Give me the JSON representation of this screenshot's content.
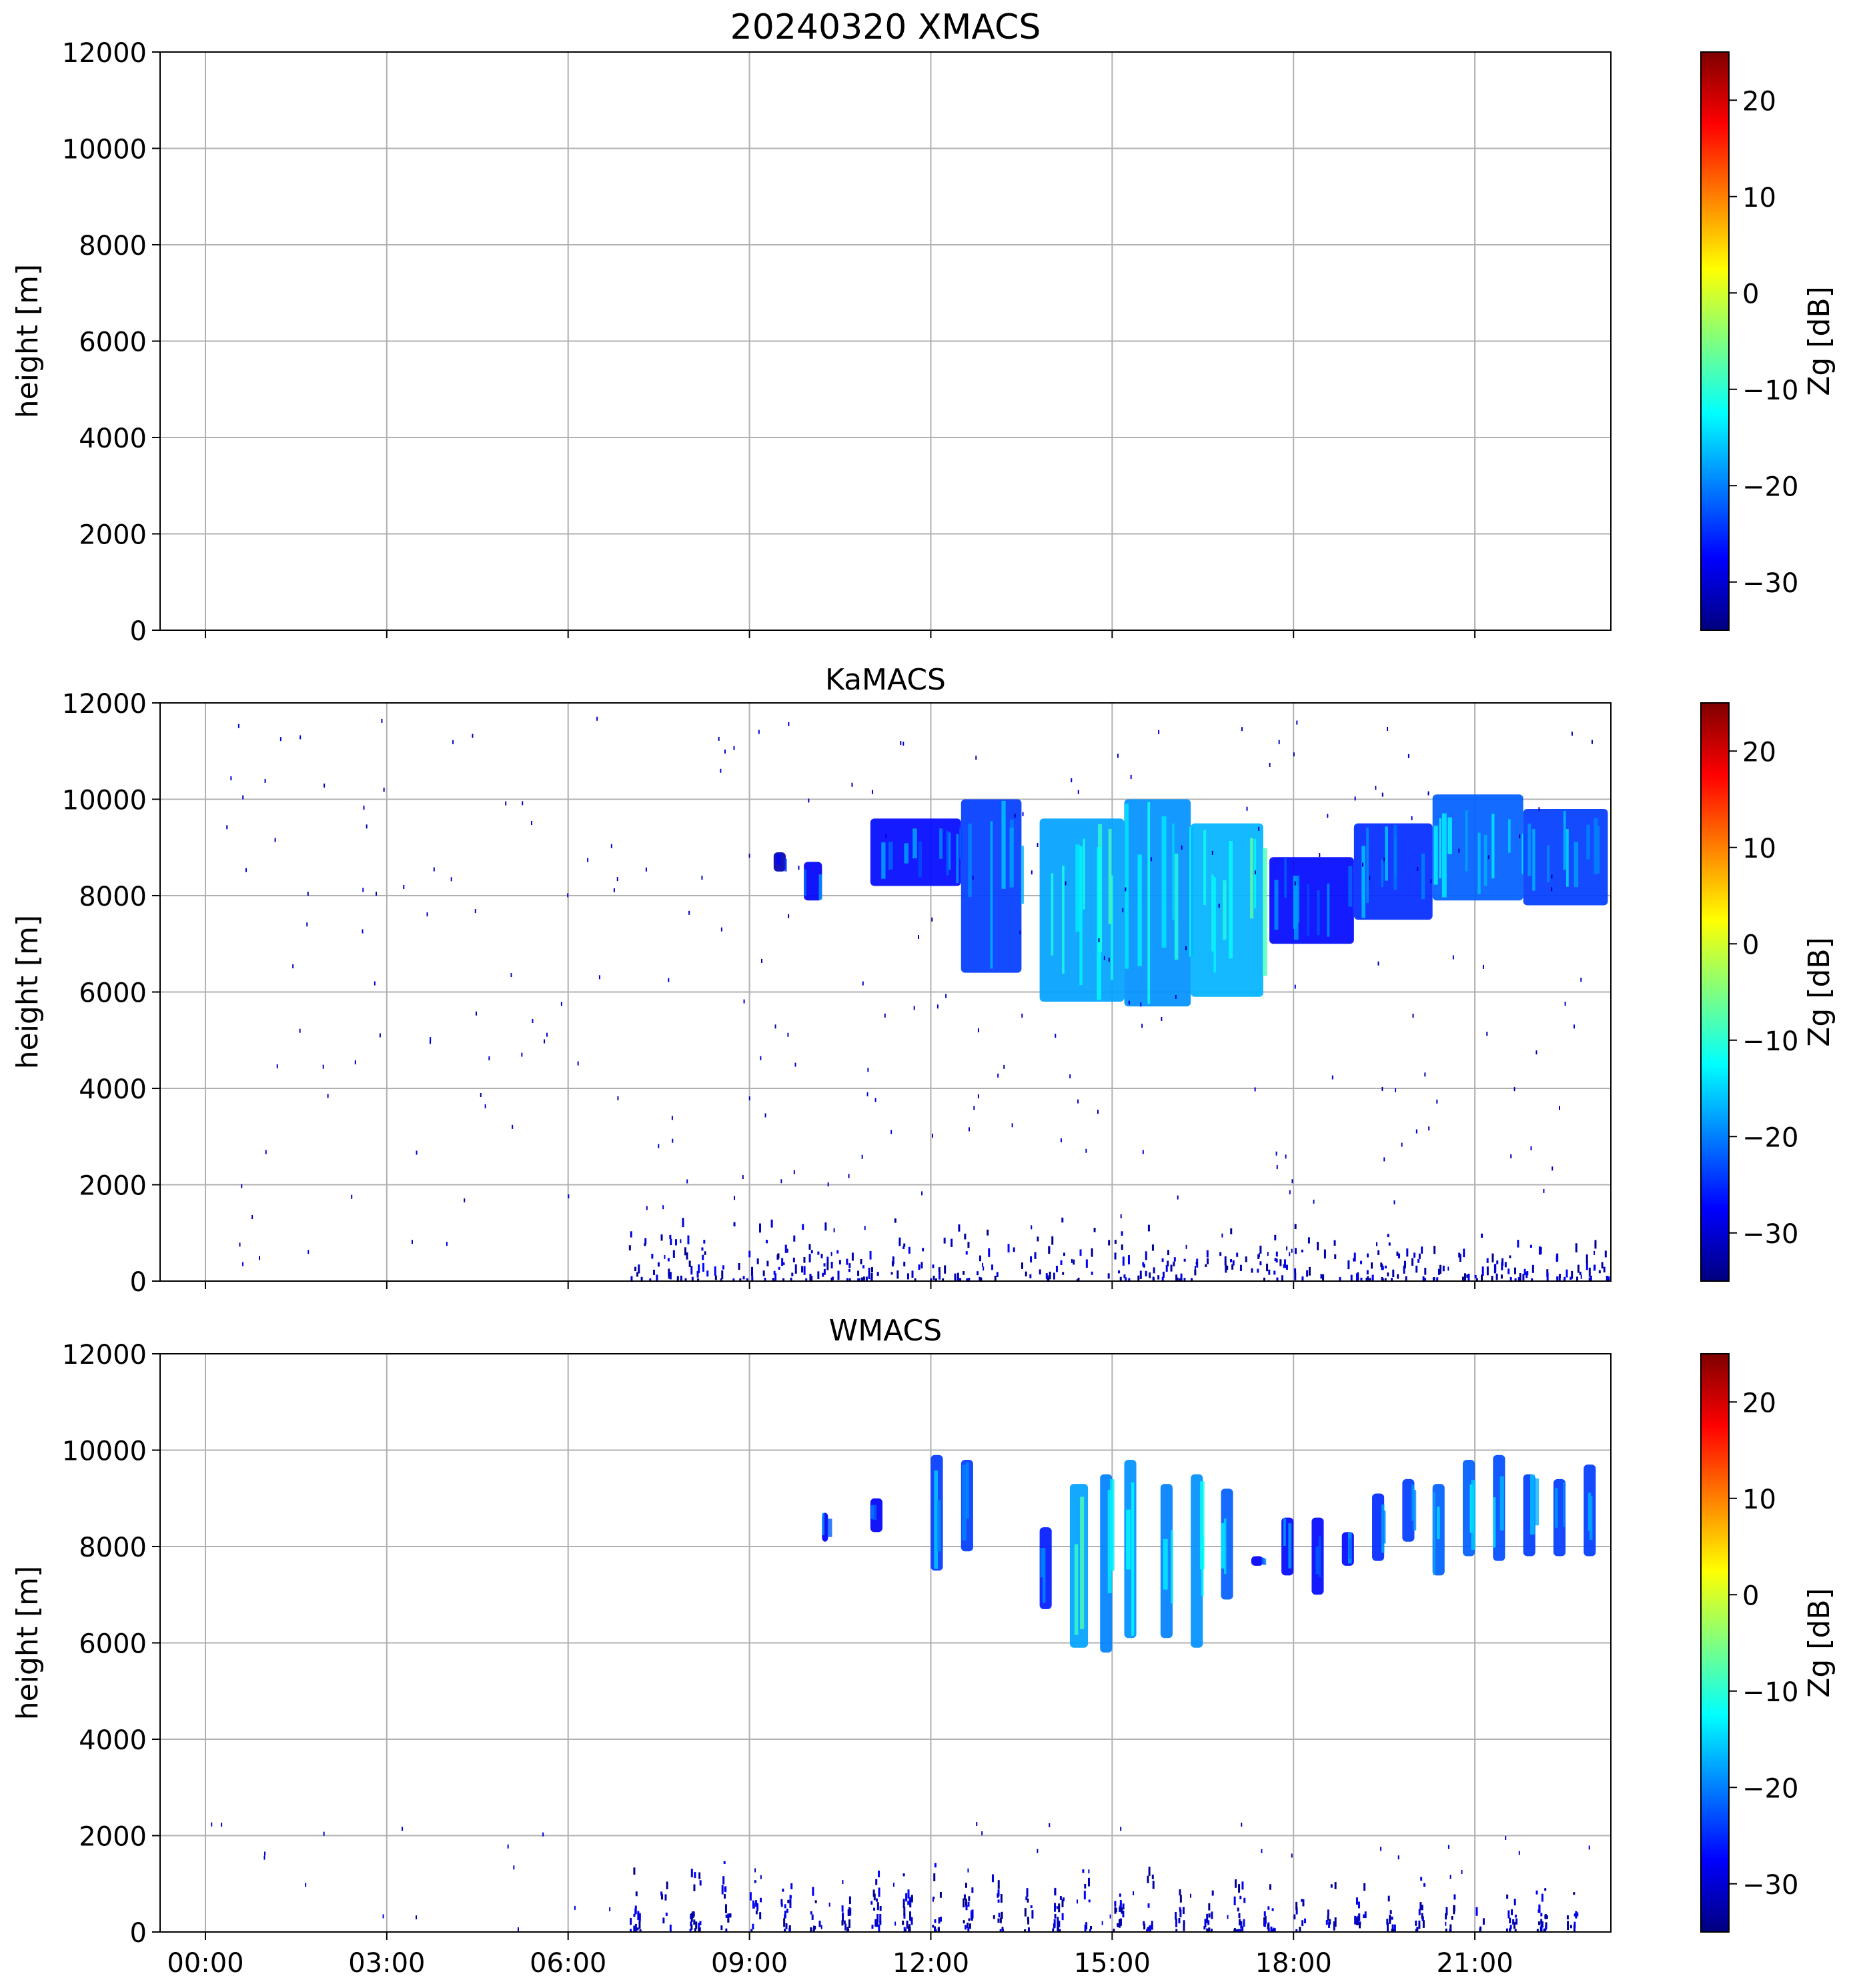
{
  "figure": {
    "time_ticks": [
      "00:00",
      "03:00",
      "06:00",
      "09:00",
      "12:00",
      "15:00",
      "18:00",
      "21:00"
    ],
    "colormap": "jet",
    "colorbar": {
      "label": "Zg [dB]",
      "range": [
        -35,
        25
      ],
      "ticks": [
        -30,
        -20,
        -10,
        0,
        10,
        20
      ]
    },
    "grid": true
  },
  "chart_data": [
    {
      "type": "heatmap",
      "title": "20240320 XMACS",
      "ylabel": "height [m]",
      "xlim_hours": [
        -0.75,
        23.25
      ],
      "ylim": [
        0,
        12000
      ],
      "yticks": [
        0,
        2000,
        4000,
        6000,
        8000,
        10000,
        12000
      ],
      "show_xticklabels": false,
      "clouds": [],
      "noise_count": 0,
      "noise_ymax": 0,
      "boundary_layer": null,
      "colorbar_label": "Zg [dB]"
    },
    {
      "type": "heatmap",
      "title": "KaMACS",
      "ylabel": "height [m]",
      "xlim_hours": [
        -0.75,
        23.25
      ],
      "ylim": [
        0,
        12000
      ],
      "yticks": [
        0,
        2000,
        4000,
        6000,
        8000,
        10000,
        12000
      ],
      "show_xticklabels": false,
      "clouds": [
        {
          "t0": 9.4,
          "t1": 9.6,
          "bottom": 8500,
          "top": 8900,
          "zg": -32
        },
        {
          "t0": 9.9,
          "t1": 10.2,
          "bottom": 7900,
          "top": 8700,
          "zg": -28
        },
        {
          "t0": 11.0,
          "t1": 12.5,
          "bottom": 8200,
          "top": 9600,
          "zg": -27
        },
        {
          "t0": 12.5,
          "t1": 13.5,
          "bottom": 6400,
          "top": 10000,
          "zg": -24
        },
        {
          "t0": 13.8,
          "t1": 15.2,
          "bottom": 5800,
          "top": 9600,
          "zg": -18
        },
        {
          "t0": 15.2,
          "t1": 16.3,
          "bottom": 5700,
          "top": 10000,
          "zg": -19
        },
        {
          "t0": 16.3,
          "t1": 17.5,
          "bottom": 5900,
          "top": 9500,
          "zg": -17
        },
        {
          "t0": 17.6,
          "t1": 19.0,
          "bottom": 7000,
          "top": 8800,
          "zg": -27
        },
        {
          "t0": 19.0,
          "t1": 20.3,
          "bottom": 7500,
          "top": 9500,
          "zg": -25
        },
        {
          "t0": 20.3,
          "t1": 21.8,
          "bottom": 7900,
          "top": 10100,
          "zg": -22
        },
        {
          "t0": 21.8,
          "t1": 23.2,
          "bottom": 7800,
          "top": 9800,
          "zg": -24
        }
      ],
      "noise_count": 260,
      "noise_ymax": 11800,
      "boundary_layer": {
        "t0": 7.0,
        "t1": 23.2,
        "top": 1100,
        "zg": -32
      },
      "colorbar_label": "Zg [dB]"
    },
    {
      "type": "heatmap",
      "title": "WMACS",
      "ylabel": "height [m]",
      "xlim_hours": [
        -0.75,
        23.25
      ],
      "ylim": [
        0,
        12000
      ],
      "yticks": [
        0,
        2000,
        4000,
        6000,
        8000,
        10000,
        12000
      ],
      "show_xticklabels": true,
      "clouds": [
        {
          "t0": 10.2,
          "t1": 10.3,
          "bottom": 8100,
          "top": 8700,
          "zg": -28
        },
        {
          "t0": 11.0,
          "t1": 11.2,
          "bottom": 8300,
          "top": 9000,
          "zg": -28
        },
        {
          "t0": 12.0,
          "t1": 12.2,
          "bottom": 7500,
          "top": 9900,
          "zg": -24
        },
        {
          "t0": 12.5,
          "t1": 12.7,
          "bottom": 7900,
          "top": 9800,
          "zg": -24
        },
        {
          "t0": 13.8,
          "t1": 14.0,
          "bottom": 6700,
          "top": 8400,
          "zg": -26
        },
        {
          "t0": 14.3,
          "t1": 14.6,
          "bottom": 5900,
          "top": 9300,
          "zg": -18
        },
        {
          "t0": 14.8,
          "t1": 15.0,
          "bottom": 5800,
          "top": 9500,
          "zg": -20
        },
        {
          "t0": 15.2,
          "t1": 15.4,
          "bottom": 6100,
          "top": 9800,
          "zg": -19
        },
        {
          "t0": 15.8,
          "t1": 16.0,
          "bottom": 6100,
          "top": 9300,
          "zg": -20
        },
        {
          "t0": 16.3,
          "t1": 16.5,
          "bottom": 5900,
          "top": 9500,
          "zg": -19
        },
        {
          "t0": 16.8,
          "t1": 17.0,
          "bottom": 6900,
          "top": 9200,
          "zg": -22
        },
        {
          "t0": 17.3,
          "t1": 17.5,
          "bottom": 7600,
          "top": 7800,
          "zg": -28
        },
        {
          "t0": 17.8,
          "t1": 18.0,
          "bottom": 7400,
          "top": 8600,
          "zg": -27
        },
        {
          "t0": 18.3,
          "t1": 18.5,
          "bottom": 7000,
          "top": 8600,
          "zg": -27
        },
        {
          "t0": 18.8,
          "t1": 19.0,
          "bottom": 7600,
          "top": 8300,
          "zg": -27
        },
        {
          "t0": 19.3,
          "t1": 19.5,
          "bottom": 7700,
          "top": 9100,
          "zg": -25
        },
        {
          "t0": 19.8,
          "t1": 20.0,
          "bottom": 8100,
          "top": 9400,
          "zg": -24
        },
        {
          "t0": 20.3,
          "t1": 20.5,
          "bottom": 7400,
          "top": 9300,
          "zg": -22
        },
        {
          "t0": 20.8,
          "t1": 21.0,
          "bottom": 7800,
          "top": 9800,
          "zg": -22
        },
        {
          "t0": 21.3,
          "t1": 21.5,
          "bottom": 7700,
          "top": 9900,
          "zg": -23
        },
        {
          "t0": 21.8,
          "t1": 22.0,
          "bottom": 7800,
          "top": 9500,
          "zg": -24
        },
        {
          "t0": 22.3,
          "t1": 22.5,
          "bottom": 7800,
          "top": 9400,
          "zg": -24
        },
        {
          "t0": 22.8,
          "t1": 23.0,
          "bottom": 7800,
          "top": 9700,
          "zg": -24
        }
      ],
      "noise_count": 50,
      "noise_ymax": 2300,
      "boundary_layer": {
        "t0": 7.0,
        "t1": 23.0,
        "top": 1200,
        "zg": -32,
        "banded": true
      },
      "colorbar_label": "Zg [dB]"
    }
  ]
}
